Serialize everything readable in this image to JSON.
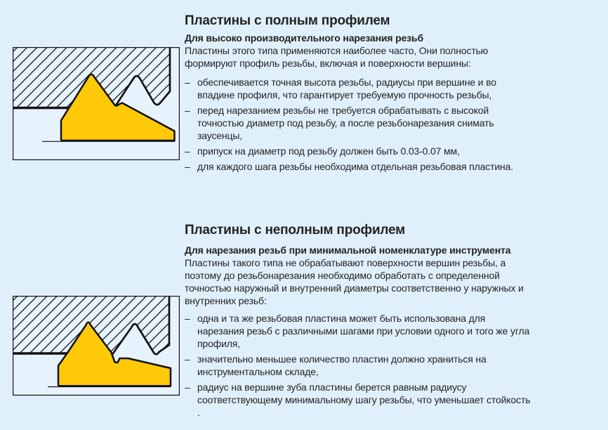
{
  "page": {
    "background": "#e0f0fa",
    "text_color": "#232323"
  },
  "colors": {
    "insert_yellow": "#fdc908",
    "diagram_background": "#e7f3fc",
    "line": "#121212"
  },
  "bullet_dash": "–",
  "sections": [
    {
      "title": "Пластины с полным профилем",
      "subtitle": "Для высоко производительного нарезания резьб",
      "intro": "Пластины этого типа применяются наиболее часто, Они полностью формируют профиль резьбы, включая и поверхности вершины:",
      "bullets": [
        "обеспечивается точная высота резьбы, радиусы при вершине и во впадине профиля, что гарантирует требуемую прочность резьбы,",
        "перед нарезанием резьбы не требуется обрабатывать с высокой точностью диаметр под резьбу, а после резьбонарезания снимать заусенцы,",
        "припуск на диаметр под резьбу должен быть 0.03-0.07 мм,",
        "для каждого шага резьбы необходима отдельная резьбовая пластина."
      ]
    },
    {
      "title": "Пластины с неполным профилем",
      "subtitle": "Для нарезания резьб при минимальной номенклатуре инструмента",
      "intro": "Пластины такого типа не обрабатывают поверхности вершин резьбы, а поэтому до резьбонарезания необходимо обработать с определенной точностью наружный и внутренний диаметры соответственно у наружных и внутренних резьб:",
      "bullets": [
        "одна и та же резьбовая пластина может быть использована для нарезания резьб с различными шагами при условии одного и того же угла профиля,",
        "значительно меньшее количество пластин должно храниться на инструментальном складе,",
        "радиус на вершине зуба пластины берется равным радиусу соответствующему минимальному шагу резьбы, что уменьшает стойкость ."
      ]
    }
  ]
}
